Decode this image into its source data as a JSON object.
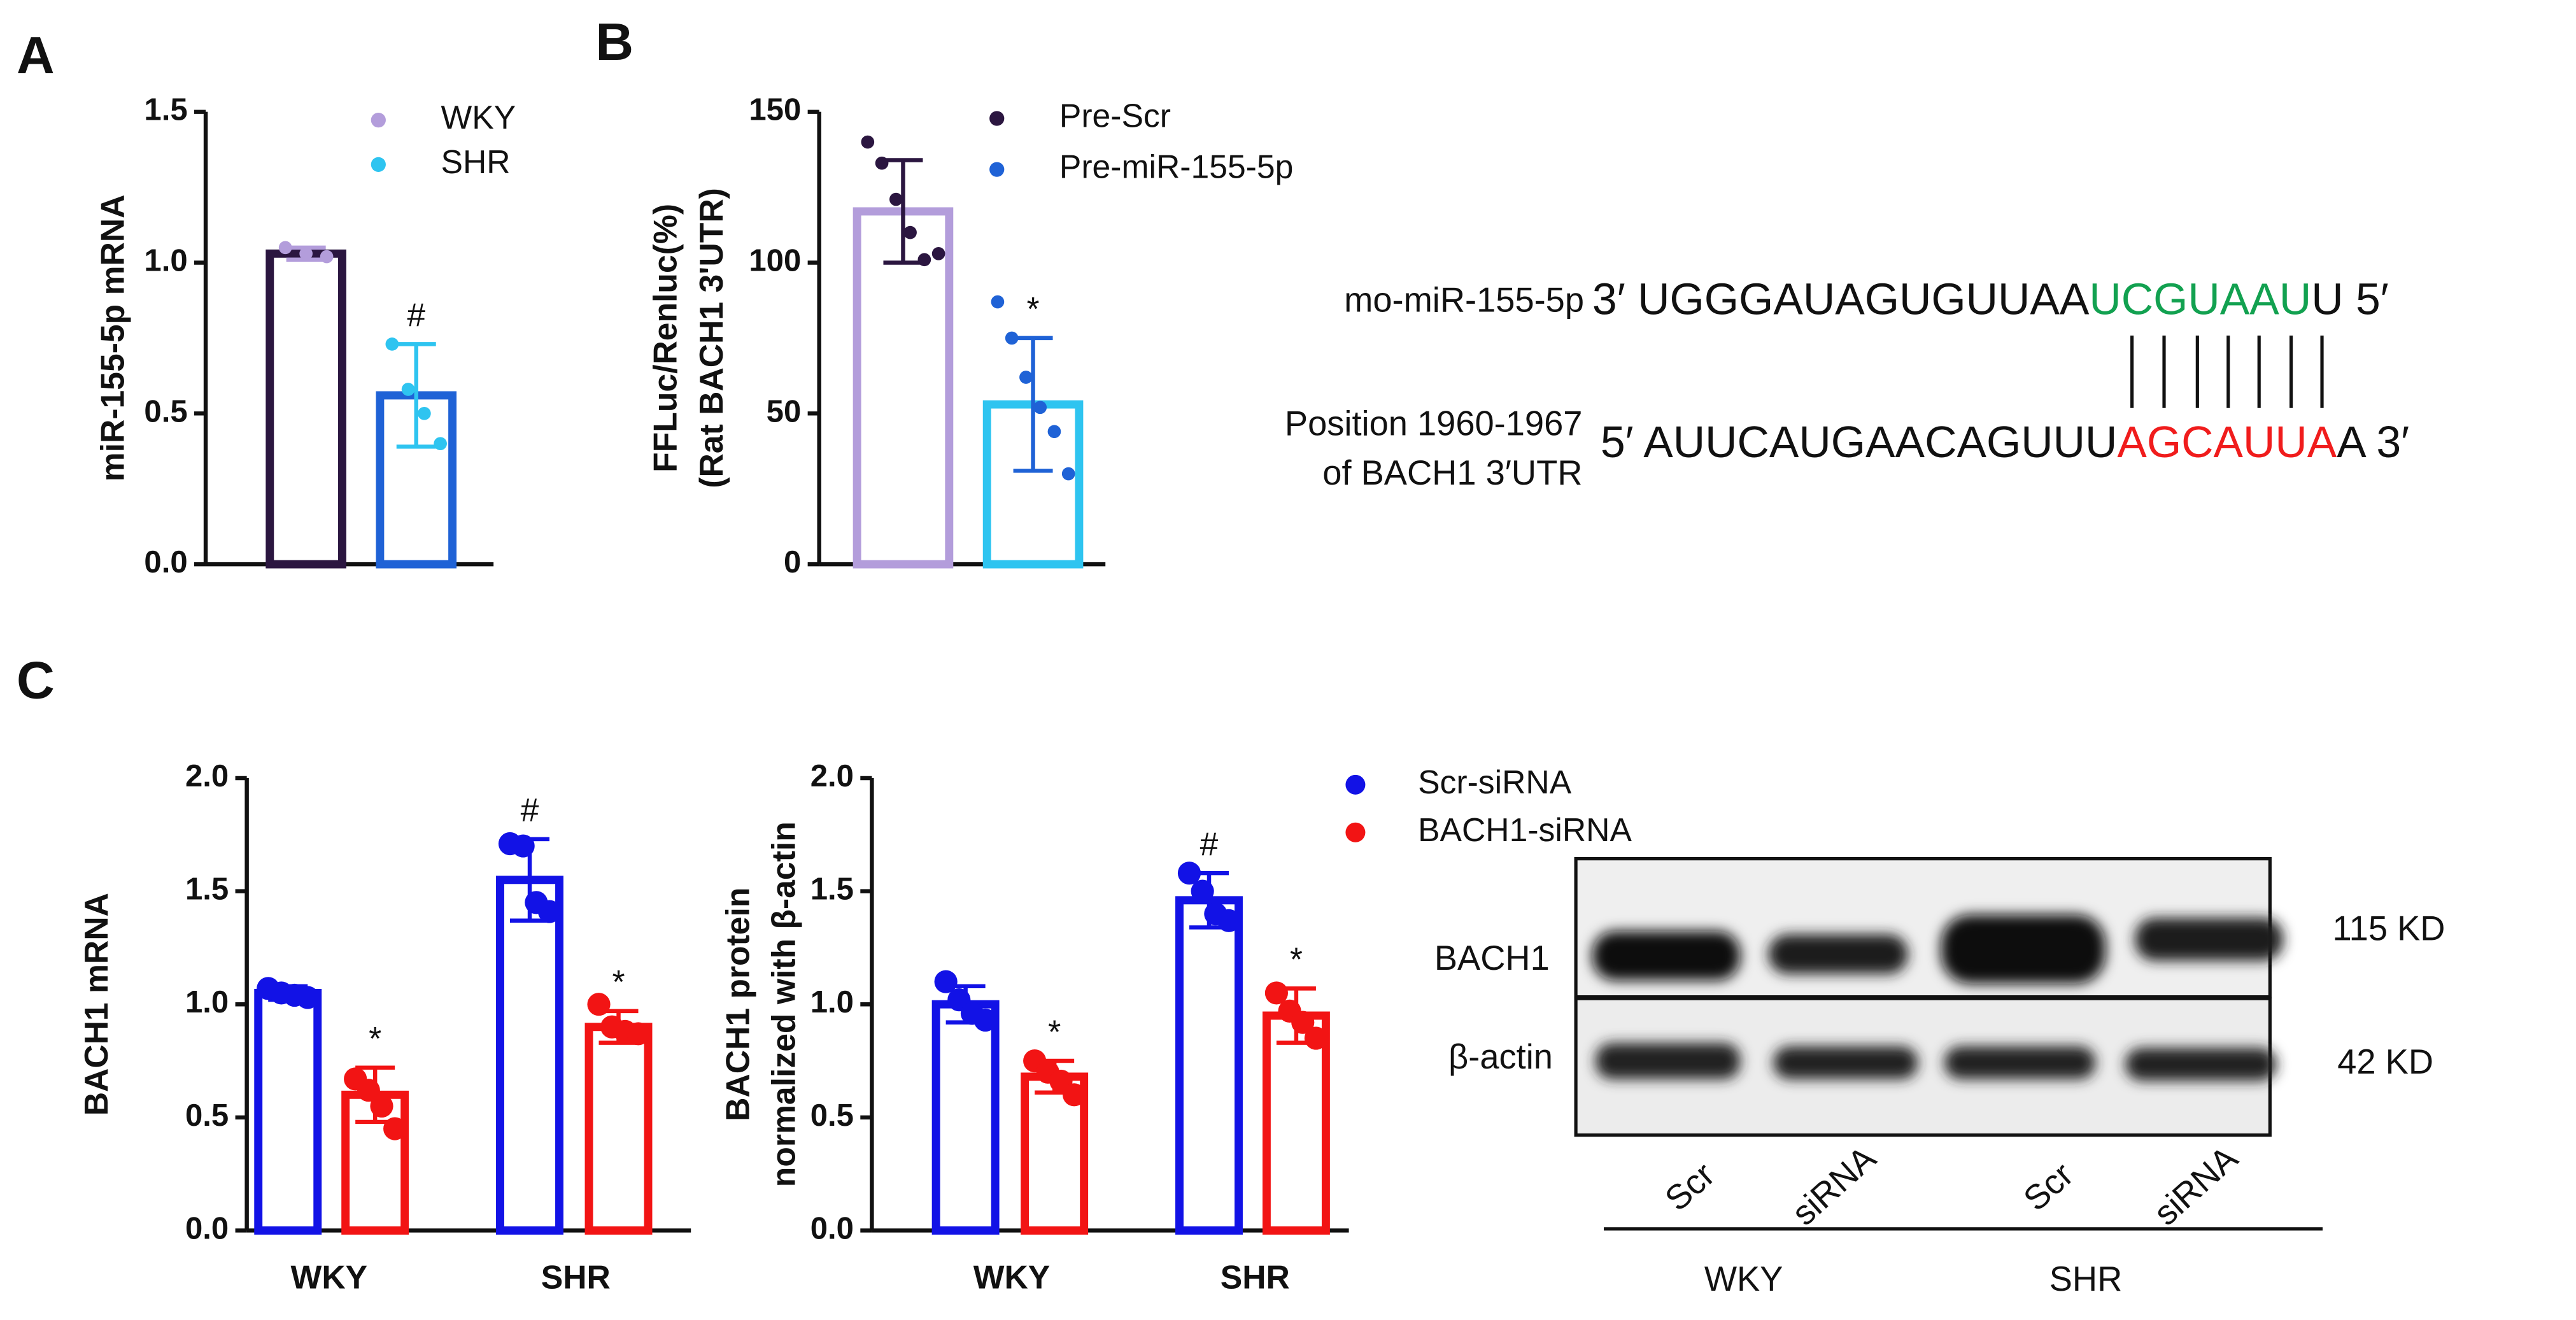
{
  "panels": [
    "A",
    "B",
    "C"
  ],
  "chart_data": [
    {
      "type": "bar",
      "ylabel": [
        "miR-155-5p mRNA"
      ],
      "ylim": [
        0,
        1.5
      ],
      "yticks": [
        {
          "value": 0,
          "label": "0.0"
        },
        0.5,
        {
          "value": 1,
          "label": "1.0"
        },
        1.5
      ],
      "legend": true,
      "series": [
        {
          "name": "WKY",
          "color": "#b39ddb",
          "bar_color": "#2b1640",
          "values": [
            1.03
          ],
          "errors": [
            0.02
          ],
          "points": [
            [
              1.05,
              1.03,
              1.02
            ]
          ]
        },
        {
          "name": "SHR",
          "color": "#2ec4f0",
          "bar_color": "#1f62d6",
          "values": [
            0.56
          ],
          "errors": [
            0.17
          ],
          "points": [
            [
              0.73,
              0.58,
              0.5,
              0.4
            ]
          ],
          "marks": [
            "#"
          ]
        }
      ]
    },
    {
      "type": "bar",
      "ylabel": [
        "FFLuc/Renluc(%)",
        "(Rat BACH1 3'UTR)"
      ],
      "ylim": [
        0,
        150
      ],
      "yticks": [
        0,
        50,
        100,
        150
      ],
      "legend": true,
      "series": [
        {
          "name": "Pre-Scr",
          "color": "#2b1640",
          "bar_color": "#b39ddb",
          "values": [
            117
          ],
          "errors": [
            17
          ],
          "points": [
            [
              140,
              133,
              121,
              110,
              101,
              103
            ]
          ]
        },
        {
          "name": "Pre-miR-155-5p",
          "color": "#1f62d6",
          "bar_color": "#2ec4f0",
          "values": [
            53
          ],
          "errors": [
            22
          ],
          "points": [
            [
              87,
              75,
              62,
              52,
              44,
              30
            ]
          ],
          "marks": [
            "*"
          ]
        }
      ]
    },
    {
      "type": "bar",
      "ylabel": [
        "BACH1 mRNA"
      ],
      "ylim": [
        0,
        2
      ],
      "yticks": [
        {
          "value": 0,
          "label": "0.0"
        },
        0.5,
        {
          "value": 1,
          "label": "1.0"
        },
        1.5,
        {
          "value": 2,
          "label": "2.0"
        }
      ],
      "legend": false,
      "categories": [
        "WKY",
        "SHR"
      ],
      "series": [
        {
          "color": "#1212e6",
          "bar_color": "#1212e6",
          "values": [
            1.05,
            1.55
          ],
          "errors": [
            0.03,
            0.18
          ],
          "points": [
            [
              1.07,
              1.05,
              1.04,
              1.03
            ],
            [
              1.71,
              1.7,
              1.45,
              1.41
            ]
          ],
          "marks": [
            null,
            "#"
          ]
        },
        {
          "color": "#f21414",
          "bar_color": "#f21414",
          "values": [
            0.6,
            0.9
          ],
          "errors": [
            0.12,
            0.07
          ],
          "points": [
            [
              0.67,
              0.62,
              0.55,
              0.45
            ],
            [
              1.0,
              0.9,
              0.88,
              0.87
            ]
          ],
          "marks": [
            "*",
            "*"
          ]
        }
      ]
    },
    {
      "type": "bar",
      "ylabel": [
        "BACH1 protein",
        "normalized with β-actin"
      ],
      "ylim": [
        0,
        2
      ],
      "yticks": [
        {
          "value": 0,
          "label": "0.0"
        },
        0.5,
        {
          "value": 1,
          "label": "1.0"
        },
        1.5,
        {
          "value": 2,
          "label": "2.0"
        }
      ],
      "legend": true,
      "categories": [
        "WKY",
        "SHR"
      ],
      "series": [
        {
          "name": "Scr-siRNA",
          "color": "#1212e6",
          "bar_color": "#1212e6",
          "values": [
            1.0,
            1.46
          ],
          "errors": [
            0.08,
            0.12
          ],
          "points": [
            [
              1.1,
              1.02,
              0.96,
              0.93
            ],
            [
              1.58,
              1.5,
              1.4,
              1.37
            ]
          ],
          "marks": [
            null,
            "#"
          ]
        },
        {
          "name": "BACH1-siRNA",
          "color": "#f21414",
          "bar_color": "#f21414",
          "values": [
            0.68,
            0.95
          ],
          "errors": [
            0.07,
            0.12
          ],
          "points": [
            [
              0.75,
              0.7,
              0.66,
              0.6
            ],
            [
              1.05,
              0.97,
              0.92,
              0.85
            ]
          ],
          "marks": [
            "*",
            "*"
          ]
        }
      ]
    }
  ],
  "sequence": {
    "mirna": {
      "label": "mo-miR-155-5p",
      "prefix": "3′ UGGGAUAGUGUUAA",
      "seed": "UCGUAAU",
      "suffix": "U 5′"
    },
    "target": {
      "label": [
        "Position 1960-1967",
        "of BACH1 3′UTR"
      ],
      "prefix": "5′ AUUCAUGAACAGUUU",
      "site": "AGCAUUA",
      "suffix": "A 3′"
    }
  },
  "western_blot": {
    "rows": [
      "BACH1",
      "β-actin"
    ],
    "sizes": [
      "115 KD",
      "42 KD"
    ],
    "lanes": [
      "Scr",
      "siRNA",
      "Scr",
      "siRNA"
    ],
    "groups": [
      "WKY",
      "SHR"
    ]
  }
}
